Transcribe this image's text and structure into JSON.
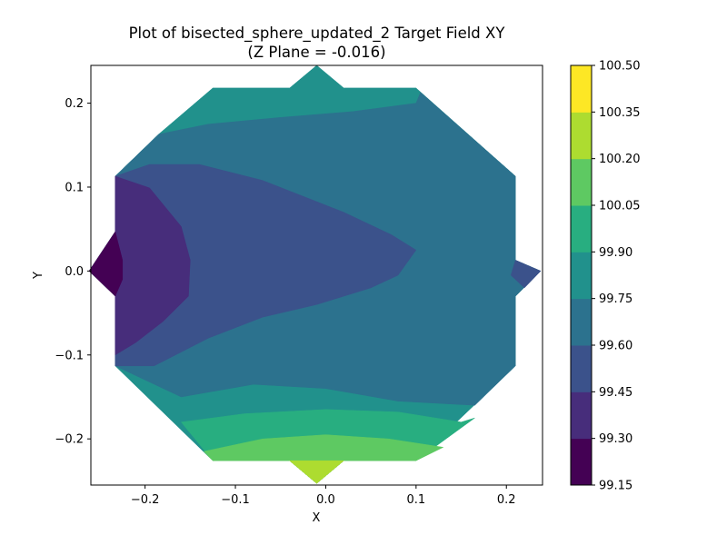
{
  "chart_data": {
    "type": "heatmap",
    "subtype": "filled-contour",
    "title": "Plot of bisected_sphere_updated_2 Target Field XY",
    "subtitle": "(Z Plane = -0.016)",
    "xlabel": "X",
    "ylabel": "Y",
    "xlim": [
      -0.26,
      0.24
    ],
    "ylim": [
      -0.255,
      0.245
    ],
    "x_ticks": [
      {
        "value": -0.2,
        "label": "−0.2"
      },
      {
        "value": -0.1,
        "label": "−0.1"
      },
      {
        "value": 0.0,
        "label": "0.0"
      },
      {
        "value": 0.1,
        "label": "0.1"
      },
      {
        "value": 0.2,
        "label": "0.2"
      }
    ],
    "y_ticks": [
      {
        "value": 0.2,
        "label": "0.2"
      },
      {
        "value": 0.1,
        "label": "0.1"
      },
      {
        "value": 0.0,
        "label": "0.0"
      },
      {
        "value": -0.1,
        "label": "−0.1"
      },
      {
        "value": -0.2,
        "label": "−0.2"
      }
    ],
    "colormap": "viridis",
    "colorbar": {
      "levels": [
        {
          "value": 100.5,
          "label": "100.50"
        },
        {
          "value": 100.35,
          "label": "100.35"
        },
        {
          "value": 100.2,
          "label": "100.20"
        },
        {
          "value": 100.05,
          "label": "100.05"
        },
        {
          "value": 99.9,
          "label": "99.90"
        },
        {
          "value": 99.75,
          "label": "99.75"
        },
        {
          "value": 99.6,
          "label": "99.60"
        },
        {
          "value": 99.45,
          "label": "99.45"
        },
        {
          "value": 99.3,
          "label": "99.30"
        },
        {
          "value": 99.15,
          "label": "99.15"
        }
      ],
      "band_colors": [
        "#440154",
        "#472d7b",
        "#3b528b",
        "#2c728e",
        "#21918c",
        "#28ae80",
        "#5ec962",
        "#addc30",
        "#fde725"
      ]
    },
    "region_outline": [
      [
        -0.01,
        0.245
      ],
      [
        -0.04,
        0.218
      ],
      [
        -0.125,
        0.218
      ],
      [
        -0.185,
        0.163
      ],
      [
        -0.233,
        0.113
      ],
      [
        -0.233,
        0.047
      ],
      [
        -0.262,
        0.0
      ],
      [
        -0.233,
        -0.03
      ],
      [
        -0.233,
        -0.113
      ],
      [
        -0.125,
        -0.226
      ],
      [
        -0.04,
        -0.226
      ],
      [
        -0.01,
        -0.253
      ],
      [
        0.02,
        -0.226
      ],
      [
        0.1,
        -0.226
      ],
      [
        0.21,
        -0.113
      ],
      [
        0.21,
        -0.03
      ],
      [
        0.238,
        0.0
      ],
      [
        0.21,
        0.013
      ],
      [
        0.21,
        0.113
      ],
      [
        0.1,
        0.218
      ],
      [
        0.02,
        0.218
      ]
    ],
    "contour_bands": [
      {
        "band": 4,
        "points": [
          [
            -0.01,
            0.245
          ],
          [
            -0.04,
            0.218
          ],
          [
            -0.125,
            0.218
          ],
          [
            -0.185,
            0.163
          ],
          [
            -0.233,
            0.113
          ],
          [
            -0.233,
            0.047
          ],
          [
            -0.262,
            0.0
          ],
          [
            -0.233,
            -0.03
          ],
          [
            -0.233,
            -0.113
          ],
          [
            -0.125,
            -0.226
          ],
          [
            -0.04,
            -0.226
          ],
          [
            -0.01,
            -0.253
          ],
          [
            0.02,
            -0.226
          ],
          [
            0.1,
            -0.226
          ],
          [
            0.21,
            -0.113
          ],
          [
            0.21,
            -0.03
          ],
          [
            0.238,
            0.0
          ],
          [
            0.21,
            0.013
          ],
          [
            0.21,
            0.113
          ],
          [
            0.1,
            0.218
          ],
          [
            0.02,
            0.218
          ]
        ]
      },
      {
        "band": 3,
        "points": [
          [
            -0.233,
            0.113
          ],
          [
            -0.185,
            0.163
          ],
          [
            -0.13,
            0.175
          ],
          [
            -0.05,
            0.183
          ],
          [
            0.03,
            0.19
          ],
          [
            0.1,
            0.2
          ],
          [
            0.105,
            0.213
          ],
          [
            0.21,
            0.113
          ],
          [
            0.21,
            0.013
          ],
          [
            0.238,
            0.0
          ],
          [
            0.21,
            -0.03
          ],
          [
            0.21,
            -0.113
          ],
          [
            0.165,
            -0.16
          ],
          [
            0.08,
            -0.155
          ],
          [
            0.0,
            -0.14
          ],
          [
            -0.08,
            -0.135
          ],
          [
            -0.16,
            -0.15
          ],
          [
            -0.233,
            -0.113
          ]
        ]
      },
      {
        "band": 2,
        "points": [
          [
            -0.233,
            0.113
          ],
          [
            -0.195,
            0.127
          ],
          [
            -0.14,
            0.127
          ],
          [
            -0.07,
            0.108
          ],
          [
            0.02,
            0.07
          ],
          [
            0.073,
            0.043
          ],
          [
            0.1,
            0.025
          ],
          [
            0.08,
            -0.005
          ],
          [
            0.05,
            -0.02
          ],
          [
            -0.01,
            -0.04
          ],
          [
            -0.07,
            -0.055
          ],
          [
            -0.13,
            -0.08
          ],
          [
            -0.19,
            -0.113
          ],
          [
            -0.233,
            -0.113
          ]
        ]
      },
      {
        "band": 1,
        "points": [
          [
            -0.233,
            0.113
          ],
          [
            -0.195,
            0.099
          ],
          [
            -0.16,
            0.053
          ],
          [
            -0.15,
            0.013
          ],
          [
            -0.152,
            -0.03
          ],
          [
            -0.18,
            -0.06
          ],
          [
            -0.21,
            -0.085
          ],
          [
            -0.233,
            -0.1
          ]
        ]
      },
      {
        "band": 0,
        "points": [
          [
            -0.233,
            0.047
          ],
          [
            -0.262,
            0.0
          ],
          [
            -0.233,
            -0.03
          ],
          [
            -0.225,
            -0.01
          ],
          [
            -0.225,
            0.013
          ]
        ]
      },
      {
        "band": 2,
        "points": [
          [
            0.21,
            0.013
          ],
          [
            0.238,
            0.0
          ],
          [
            0.22,
            -0.02
          ],
          [
            0.205,
            -0.005
          ]
        ]
      },
      {
        "band": 5,
        "points": [
          [
            -0.16,
            -0.18
          ],
          [
            -0.09,
            -0.17
          ],
          [
            0.0,
            -0.165
          ],
          [
            0.08,
            -0.168
          ],
          [
            0.15,
            -0.18
          ],
          [
            0.165,
            -0.175
          ],
          [
            0.1,
            -0.226
          ],
          [
            0.02,
            -0.226
          ],
          [
            -0.01,
            -0.253
          ],
          [
            -0.04,
            -0.226
          ],
          [
            -0.125,
            -0.226
          ]
        ]
      },
      {
        "band": 6,
        "points": [
          [
            -0.135,
            -0.215
          ],
          [
            -0.07,
            -0.2
          ],
          [
            0.0,
            -0.195
          ],
          [
            0.07,
            -0.2
          ],
          [
            0.13,
            -0.21
          ],
          [
            0.1,
            -0.226
          ],
          [
            0.02,
            -0.226
          ],
          [
            -0.01,
            -0.253
          ],
          [
            -0.04,
            -0.226
          ],
          [
            -0.125,
            -0.226
          ]
        ]
      },
      {
        "band": 7,
        "points": [
          [
            -0.04,
            -0.226
          ],
          [
            0.02,
            -0.226
          ],
          [
            -0.01,
            -0.253
          ]
        ]
      }
    ]
  }
}
